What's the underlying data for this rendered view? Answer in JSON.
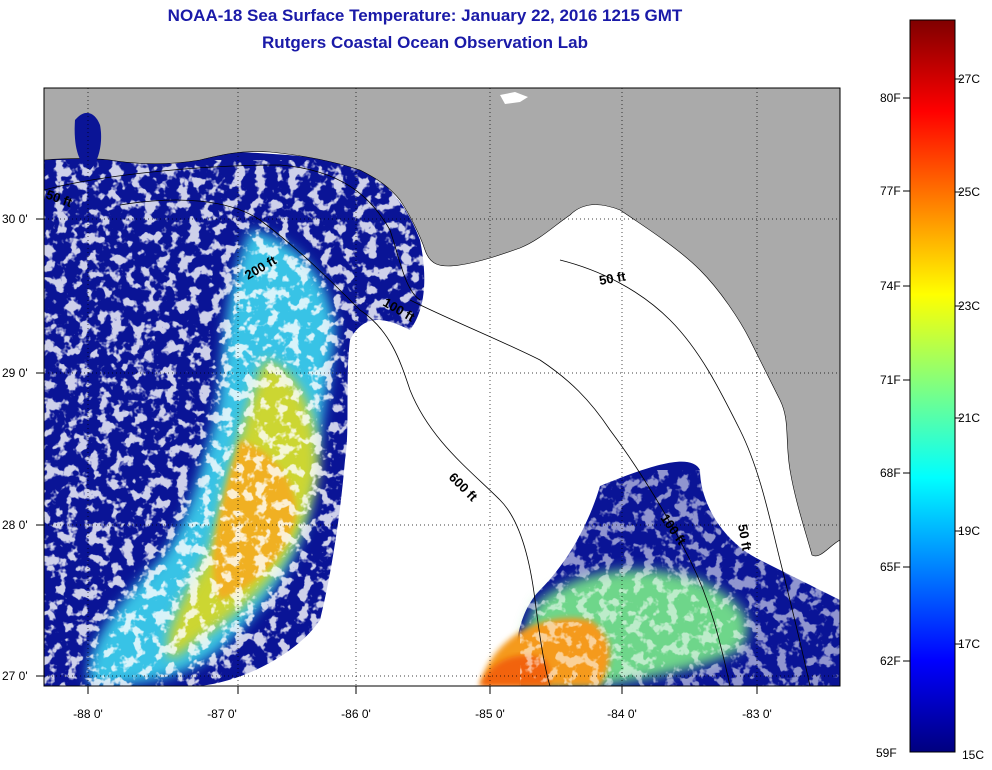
{
  "title": "NOAA-18 Sea Surface Temperature:  January 22, 2016 1215 GMT",
  "subtitle": "Rutgers Coastal Ocean Observation Lab",
  "lon_labels": [
    "-88 0'",
    "-87 0'",
    "-86 0'",
    "-85 0'",
    "-84 0'",
    "-83 0'"
  ],
  "lat_labels": [
    "30 0'",
    "29 0'",
    "28 0'",
    "27 0'"
  ],
  "contour_labels": [
    "50 ft",
    "50 ft",
    "50 ft",
    "100 ft",
    "100 ft",
    "200 ft",
    "600 ft"
  ],
  "colorbar": {
    "fahrenheit": [
      "80F",
      "77F",
      "74F",
      "71F",
      "68F",
      "65F",
      "62F",
      "59F"
    ],
    "celsius": [
      "27C",
      "25C",
      "23C",
      "21C",
      "19C",
      "17C",
      "15C"
    ],
    "stops": [
      "#00007f",
      "#0000ff",
      "#0080ff",
      "#00ffff",
      "#80ff80",
      "#ffff00",
      "#ff8000",
      "#ff0000",
      "#7f0000"
    ]
  },
  "colors": {
    "land": "#aaaaaa",
    "cold": "#0a1496",
    "title": "#1a1aa8"
  }
}
